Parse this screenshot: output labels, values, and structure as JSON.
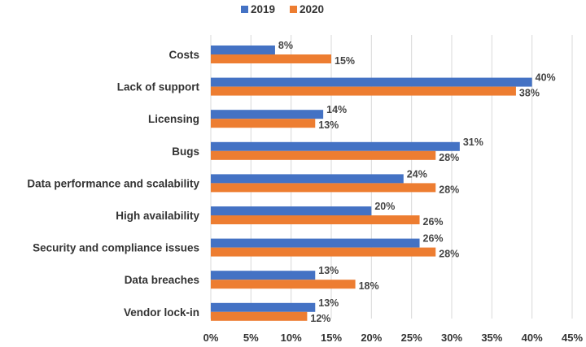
{
  "chart_data": {
    "type": "bar",
    "orientation": "horizontal",
    "categories": [
      "Costs",
      "Lack of support",
      "Licensing",
      "Bugs",
      "Data performance and scalability",
      "High availability",
      "Security and compliance issues",
      "Data breaches",
      "Vendor lock-in"
    ],
    "series": [
      {
        "name": "2019",
        "color": "#4472C4",
        "values": [
          8,
          40,
          14,
          31,
          24,
          20,
          26,
          13,
          13
        ],
        "labels": [
          "8%",
          "40%",
          "14%",
          "31%",
          "24%",
          "20%",
          "26%",
          "13%",
          "13%"
        ]
      },
      {
        "name": "2020",
        "color": "#ED7D31",
        "values": [
          15,
          38,
          13,
          28,
          28,
          26,
          28,
          18,
          12
        ],
        "labels": [
          "15%",
          "38%",
          "13%",
          "28%",
          "28%",
          "26%",
          "28%",
          "18%",
          "12%"
        ]
      }
    ],
    "xlim": [
      0,
      45
    ],
    "xticks": [
      "0%",
      "5%",
      "10%",
      "15%",
      "20%",
      "25%",
      "30%",
      "35%",
      "40%",
      "45%"
    ],
    "grid": true,
    "legend_position": "top-center"
  }
}
